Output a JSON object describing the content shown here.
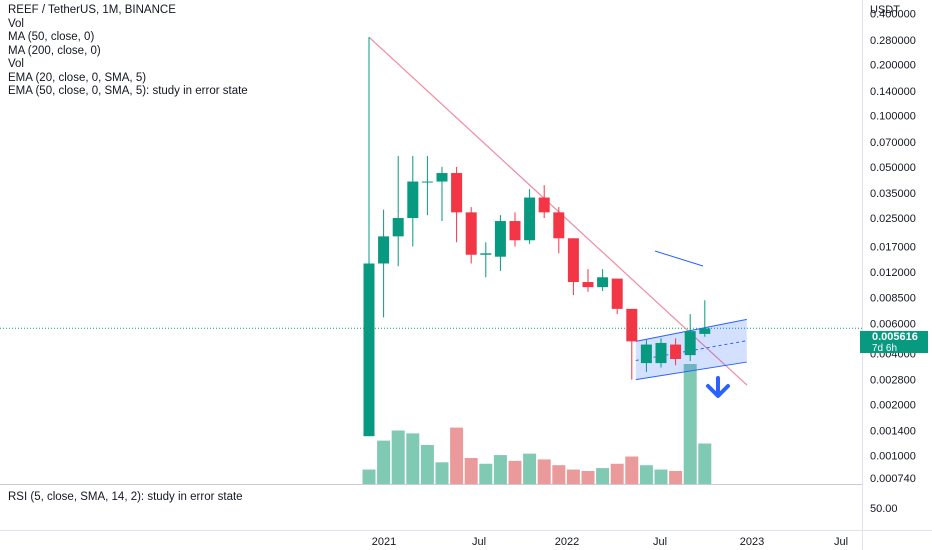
{
  "legend": {
    "title": "REEF / TetherUS, 1M, BINANCE",
    "lines": [
      "Vol",
      "MA (50, close, 0)",
      "MA (200, close, 0)",
      "Vol",
      "EMA (20, close, 0, SMA, 5)",
      "EMA (50, close, 0, SMA, 5): study in error state"
    ]
  },
  "rsi_label": "RSI (5, close, SMA, 14, 2): study in error state",
  "price_axis": {
    "currency": "USDT",
    "ticks": [
      "0.400000",
      "0.280000",
      "0.200000",
      "0.140000",
      "0.100000",
      "0.070000",
      "0.050000",
      "0.035000",
      "0.025000",
      "0.017000",
      "0.012000",
      "0.008500",
      "0.006000",
      "0.004000",
      "0.002800",
      "0.002000",
      "0.001400",
      "0.001000",
      "0.000740"
    ],
    "rsi_tick": "50.00",
    "current_price": "0.005616",
    "countdown": "7d 6h"
  },
  "colors": {
    "up": "#089981",
    "down": "#f23645",
    "vol_up": "#80c9b3",
    "vol_down": "#ea9a9a",
    "trendline": "#f28ba0",
    "channel": "#2962ff",
    "arrow": "#2962ff"
  },
  "chart_data": {
    "type": "candlestick",
    "title": "REEF / TetherUS, 1M, BINANCE",
    "y_scale": "log",
    "ylim": [
      0.00068,
      0.48
    ],
    "x_ticks": [
      "2021",
      "Jul",
      "2022",
      "Jul",
      "2023",
      "Jul"
    ],
    "candles": [
      {
        "o": 0.0013,
        "h": 0.29,
        "l": 0.0013,
        "c": 0.0135,
        "v": 10
      },
      {
        "o": 0.0135,
        "h": 0.028,
        "l": 0.0065,
        "c": 0.0195,
        "v": 30
      },
      {
        "o": 0.0195,
        "h": 0.058,
        "l": 0.013,
        "c": 0.025,
        "v": 37
      },
      {
        "o": 0.025,
        "h": 0.058,
        "l": 0.017,
        "c": 0.041,
        "v": 35
      },
      {
        "o": 0.041,
        "h": 0.058,
        "l": 0.026,
        "c": 0.041,
        "v": 27
      },
      {
        "o": 0.041,
        "h": 0.05,
        "l": 0.024,
        "c": 0.046,
        "v": 15
      },
      {
        "o": 0.046,
        "h": 0.05,
        "l": 0.018,
        "c": 0.027,
        "v": 39
      },
      {
        "o": 0.027,
        "h": 0.029,
        "l": 0.0135,
        "c": 0.0152,
        "v": 18
      },
      {
        "o": 0.0152,
        "h": 0.018,
        "l": 0.0112,
        "c": 0.0155,
        "v": 14
      },
      {
        "o": 0.0148,
        "h": 0.026,
        "l": 0.0122,
        "c": 0.024,
        "v": 20
      },
      {
        "o": 0.024,
        "h": 0.027,
        "l": 0.017,
        "c": 0.0185,
        "v": 16
      },
      {
        "o": 0.0185,
        "h": 0.037,
        "l": 0.0176,
        "c": 0.033,
        "v": 21
      },
      {
        "o": 0.033,
        "h": 0.039,
        "l": 0.025,
        "c": 0.027,
        "v": 17
      },
      {
        "o": 0.027,
        "h": 0.029,
        "l": 0.0155,
        "c": 0.019,
        "v": 13
      },
      {
        "o": 0.019,
        "h": 0.019,
        "l": 0.0088,
        "c": 0.0105,
        "v": 10
      },
      {
        "o": 0.0105,
        "h": 0.0125,
        "l": 0.0092,
        "c": 0.0098,
        "v": 9
      },
      {
        "o": 0.0098,
        "h": 0.0125,
        "l": 0.0093,
        "c": 0.0112,
        "v": 11
      },
      {
        "o": 0.011,
        "h": 0.011,
        "l": 0.0068,
        "c": 0.0073,
        "v": 14
      },
      {
        "o": 0.0073,
        "h": 0.0073,
        "l": 0.0028,
        "c": 0.0047,
        "v": 19
      },
      {
        "o": 0.0035,
        "h": 0.0048,
        "l": 0.0031,
        "c": 0.0045,
        "v": 13
      },
      {
        "o": 0.0035,
        "h": 0.0049,
        "l": 0.0033,
        "c": 0.0046,
        "v": 10
      },
      {
        "o": 0.0045,
        "h": 0.0049,
        "l": 0.0034,
        "c": 0.0037,
        "v": 9
      },
      {
        "o": 0.0039,
        "h": 0.0068,
        "l": 0.0036,
        "c": 0.0054,
        "v": 83
      },
      {
        "o": 0.0052,
        "h": 0.0082,
        "l": 0.005,
        "c": 0.0056,
        "v": 28
      }
    ],
    "annotations": {
      "trendline": "descending",
      "channel": "ascending",
      "arrow": "down"
    }
  }
}
